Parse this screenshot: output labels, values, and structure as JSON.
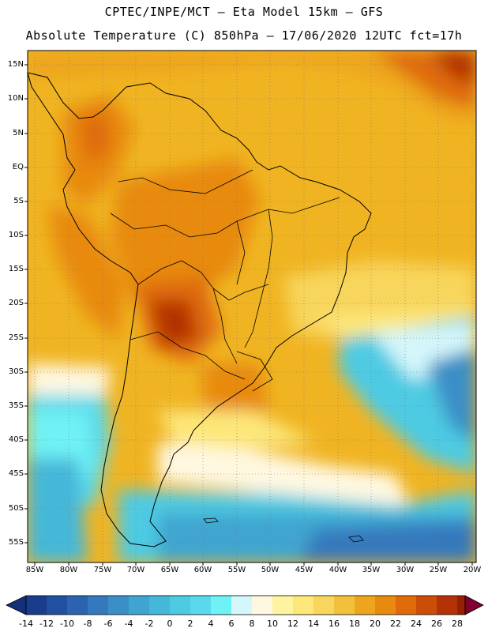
{
  "header": {
    "line1": "CPTEC/INPE/MCT –  Eta Model 15km – GFS",
    "line2": "Absolute Temperature (C) 850hPa – 17/06/2020 12UTC fct=17h"
  },
  "axes": {
    "latitudes": [
      "15N",
      "10N",
      "5N",
      "EQ",
      "5S",
      "10S",
      "15S",
      "20S",
      "25S",
      "30S",
      "35S",
      "40S",
      "45S",
      "50S",
      "55S"
    ],
    "longitudes": [
      "85W",
      "80W",
      "75W",
      "70W",
      "65W",
      "60W",
      "55W",
      "50W",
      "45W",
      "40W",
      "35W",
      "30W",
      "25W",
      "20W"
    ]
  },
  "colorbar": {
    "labels": [
      "-14",
      "-12",
      "-10",
      "-8",
      "-6",
      "-4",
      "-2",
      "0",
      "2",
      "4",
      "6",
      "8",
      "10",
      "12",
      "14",
      "16",
      "18",
      "20",
      "22",
      "24",
      "26",
      "28"
    ],
    "colors": [
      "#1a3c8c",
      "#2150a0",
      "#2b63b0",
      "#3478bd",
      "#3a8fc6",
      "#3fa5d0",
      "#45b8da",
      "#4dcbe3",
      "#5ad9ec",
      "#6ff2f5",
      "#d4f7fb",
      "#fff8e1",
      "#fff3a0",
      "#fde77a",
      "#f8d55c",
      "#f3c03c",
      "#eea51e",
      "#e88a10",
      "#df6a0a",
      "#cc4d08",
      "#b33306",
      "#962005",
      "#7a1505"
    ],
    "underflow_color": "#152f78",
    "overflow_color": "#800030"
  }
}
